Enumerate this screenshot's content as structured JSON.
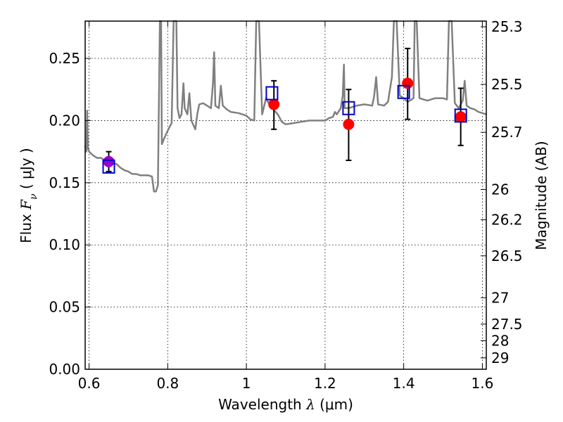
{
  "chart_data": {
    "type": "scatter",
    "xlabel": {
      "prefix": "Wavelength  ",
      "symbol": "λ",
      "unit": " (μm)"
    },
    "ylabel": {
      "prefix": "Flux  ",
      "symbol": "F",
      "subscript": "ν",
      "unit": "  ( μJy )"
    },
    "y2label": "Magnitude (AB)",
    "xlim": [
      0.59,
      1.61
    ],
    "ylim": [
      0.0,
      0.28
    ],
    "x_ticks": [
      0.6,
      0.8,
      1.0,
      1.2,
      1.4,
      1.6
    ],
    "x_tick_labels": [
      "0.6",
      "0.8",
      "1",
      "1.2",
      "1.4",
      "1.6"
    ],
    "y_ticks": [
      0.0,
      0.05,
      0.1,
      0.15,
      0.2,
      0.25
    ],
    "y_tick_labels": [
      "0.00",
      "0.05",
      "0.10",
      "0.15",
      "0.20",
      "0.25"
    ],
    "mag_ticks": [
      "25.3",
      "25.5",
      "25.7",
      "26",
      "26.2",
      "26.5",
      "27",
      "27.5",
      "28",
      "29"
    ],
    "grid": true,
    "colors": {
      "model": "#808080",
      "observed": "#ff0000",
      "model_photometry": "#0000cc",
      "merged_point": "#9900cc",
      "errorbar": "#000000"
    },
    "series": [
      {
        "kind": "model-spectrum",
        "points": [
          [
            0.59,
            0.18
          ],
          [
            0.593,
            0.175
          ],
          [
            0.595,
            0.208
          ],
          [
            0.597,
            0.178
          ],
          [
            0.6,
            0.175
          ],
          [
            0.61,
            0.172
          ],
          [
            0.62,
            0.17
          ],
          [
            0.63,
            0.17
          ],
          [
            0.64,
            0.168
          ],
          [
            0.65,
            0.168
          ],
          [
            0.66,
            0.166
          ],
          [
            0.67,
            0.165
          ],
          [
            0.68,
            0.162
          ],
          [
            0.69,
            0.16
          ],
          [
            0.7,
            0.159
          ],
          [
            0.71,
            0.157
          ],
          [
            0.72,
            0.157
          ],
          [
            0.73,
            0.156
          ],
          [
            0.74,
            0.156
          ],
          [
            0.75,
            0.156
          ],
          [
            0.76,
            0.155
          ],
          [
            0.765,
            0.143
          ],
          [
            0.77,
            0.143
          ],
          [
            0.775,
            0.148
          ],
          [
            0.78,
            0.28
          ],
          [
            0.783,
            0.28
          ],
          [
            0.785,
            0.181
          ],
          [
            0.79,
            0.185
          ],
          [
            0.8,
            0.192
          ],
          [
            0.81,
            0.198
          ],
          [
            0.815,
            0.28
          ],
          [
            0.822,
            0.28
          ],
          [
            0.825,
            0.21
          ],
          [
            0.83,
            0.202
          ],
          [
            0.835,
            0.205
          ],
          [
            0.84,
            0.23
          ],
          [
            0.843,
            0.21
          ],
          [
            0.85,
            0.205
          ],
          [
            0.855,
            0.222
          ],
          [
            0.86,
            0.2
          ],
          [
            0.87,
            0.193
          ],
          [
            0.875,
            0.205
          ],
          [
            0.88,
            0.213
          ],
          [
            0.89,
            0.214
          ],
          [
            0.9,
            0.212
          ],
          [
            0.91,
            0.21
          ],
          [
            0.915,
            0.23
          ],
          [
            0.918,
            0.255
          ],
          [
            0.921,
            0.212
          ],
          [
            0.93,
            0.21
          ],
          [
            0.935,
            0.228
          ],
          [
            0.94,
            0.212
          ],
          [
            0.95,
            0.209
          ],
          [
            0.96,
            0.207
          ],
          [
            0.98,
            0.206
          ],
          [
            1.0,
            0.204
          ],
          [
            1.01,
            0.201
          ],
          [
            1.02,
            0.2
          ],
          [
            1.025,
            0.28
          ],
          [
            1.032,
            0.28
          ],
          [
            1.04,
            0.205
          ],
          [
            1.05,
            0.218
          ],
          [
            1.06,
            0.212
          ],
          [
            1.08,
            0.205
          ],
          [
            1.09,
            0.199
          ],
          [
            1.1,
            0.197
          ],
          [
            1.12,
            0.198
          ],
          [
            1.14,
            0.199
          ],
          [
            1.16,
            0.2
          ],
          [
            1.18,
            0.2
          ],
          [
            1.2,
            0.2
          ],
          [
            1.21,
            0.202
          ],
          [
            1.22,
            0.203
          ],
          [
            1.225,
            0.207
          ],
          [
            1.23,
            0.205
          ],
          [
            1.24,
            0.21
          ],
          [
            1.245,
            0.22
          ],
          [
            1.248,
            0.245
          ],
          [
            1.25,
            0.21
          ],
          [
            1.26,
            0.21
          ],
          [
            1.28,
            0.212
          ],
          [
            1.3,
            0.213
          ],
          [
            1.32,
            0.212
          ],
          [
            1.325,
            0.22
          ],
          [
            1.33,
            0.235
          ],
          [
            1.335,
            0.213
          ],
          [
            1.35,
            0.212
          ],
          [
            1.36,
            0.215
          ],
          [
            1.37,
            0.235
          ],
          [
            1.375,
            0.28
          ],
          [
            1.382,
            0.28
          ],
          [
            1.39,
            0.22
          ],
          [
            1.4,
            0.218
          ],
          [
            1.41,
            0.215
          ],
          [
            1.425,
            0.218
          ],
          [
            1.428,
            0.28
          ],
          [
            1.433,
            0.28
          ],
          [
            1.44,
            0.218
          ],
          [
            1.46,
            0.216
          ],
          [
            1.48,
            0.218
          ],
          [
            1.5,
            0.218
          ],
          [
            1.51,
            0.217
          ],
          [
            1.515,
            0.28
          ],
          [
            1.522,
            0.28
          ],
          [
            1.53,
            0.214
          ],
          [
            1.54,
            0.21
          ],
          [
            1.55,
            0.216
          ],
          [
            1.555,
            0.232
          ],
          [
            1.56,
            0.212
          ],
          [
            1.57,
            0.21
          ],
          [
            1.58,
            0.209
          ],
          [
            1.59,
            0.207
          ],
          [
            1.6,
            0.206
          ],
          [
            1.61,
            0.205
          ]
        ]
      },
      {
        "kind": "observed",
        "points": [
          {
            "x": 1.07,
            "y": 0.213,
            "err": [
              0.193,
              0.232
            ]
          },
          {
            "x": 1.26,
            "y": 0.197,
            "err": [
              0.168,
              0.225
            ]
          },
          {
            "x": 1.41,
            "y": 0.23,
            "err": [
              0.201,
              0.258
            ]
          },
          {
            "x": 1.545,
            "y": 0.203,
            "err": [
              0.18,
              0.226
            ]
          }
        ]
      },
      {
        "kind": "merged",
        "points": [
          {
            "x": 0.65,
            "y": 0.167,
            "err": [
              0.159,
              0.175
            ]
          }
        ]
      },
      {
        "kind": "model-photometry",
        "points": [
          {
            "x": 0.65,
            "y": 0.163
          },
          {
            "x": 1.065,
            "y": 0.222
          },
          {
            "x": 1.26,
            "y": 0.21
          },
          {
            "x": 1.4,
            "y": 0.223
          },
          {
            "x": 1.545,
            "y": 0.204
          }
        ]
      }
    ]
  }
}
